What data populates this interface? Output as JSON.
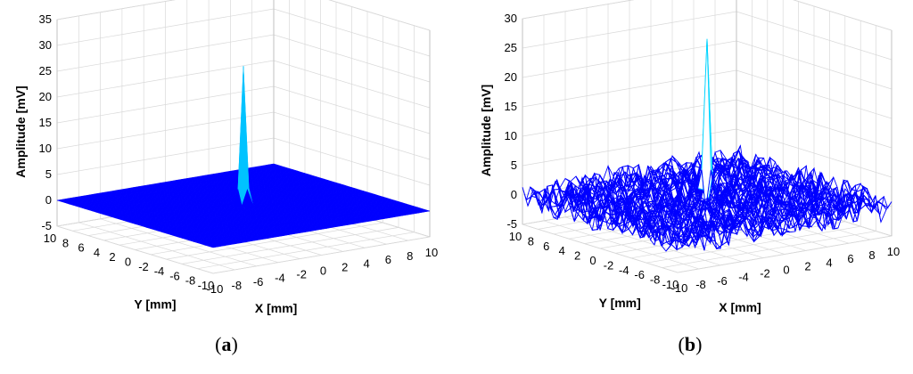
{
  "chart_data": [
    {
      "type": "surface",
      "caption": "a",
      "zlabel": "Amplitude [mV]",
      "xlabel": "X [mm]",
      "ylabel": "Y [mm]",
      "zticks": [
        35,
        30,
        25,
        20,
        15,
        10,
        5,
        0,
        -5
      ],
      "zlim": [
        -5,
        35
      ],
      "xticks": [
        -10,
        -8,
        -6,
        -4,
        -2,
        0,
        2,
        4,
        6,
        8,
        10
      ],
      "yticks": [
        10,
        8,
        6,
        4,
        2,
        0,
        -2,
        -4,
        -6,
        -8,
        -10
      ],
      "xlim": [
        -10,
        10
      ],
      "ylim": [
        -10,
        10
      ],
      "peak_amplitude": 27,
      "peak_x": 0,
      "peak_y": 0,
      "surface_color": "#0000ff",
      "grid": true
    },
    {
      "type": "surface",
      "caption": "b",
      "zlabel": "Amplitude [mV]",
      "xlabel": "X [mm]",
      "ylabel": "Y [mm]",
      "zticks": [
        30,
        25,
        20,
        15,
        10,
        5,
        0,
        -5
      ],
      "zlim": [
        -5,
        30
      ],
      "xticks": [
        -10,
        -8,
        -6,
        -4,
        -2,
        0,
        2,
        4,
        6,
        8,
        10
      ],
      "yticks": [
        10,
        8,
        6,
        4,
        2,
        0,
        -2,
        -4,
        -6,
        -8,
        -10
      ],
      "xlim": [
        -10,
        10
      ],
      "ylim": [
        -10,
        10
      ],
      "peak_amplitude": 28,
      "peak_x": 0,
      "peak_y": 0,
      "surface_color": "#0000ff",
      "grid": true
    }
  ]
}
